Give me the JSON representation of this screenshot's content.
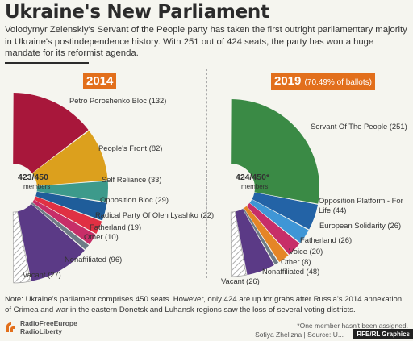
{
  "title": "Ukraine's New Parliament",
  "subtitle": "Volodymyr Zelenskiy's Servant of the People party has taken the first outright parliamentary majority in Ukraine's postindependence history. With 251 out of 424 seats, the party has won a huge mandate for its reformist agenda.",
  "note": "Note: Ukraine's parliament comprises 450 seats. However, only 424 are up for grabs after Russia's 2014 annexation of Crimea and war in the eastern Donetsk and Luhansk regions saw the loss of several voting districts.",
  "footnote": "*One member hasn't been assigned.",
  "byline": "Sofiya Zhelizna | Source: U...",
  "credit": "RFE/RL Graphics",
  "logo_lines": [
    "RadioFreeEurope",
    "RadioLiberty"
  ],
  "chart_data": [
    {
      "type": "pie",
      "year_label": "2014",
      "year_extra": "",
      "center_label": "423/450",
      "center_sub": "members",
      "slices": [
        {
          "name": "Petro Poroshenko Bloc",
          "value": 132,
          "color": "#a8173b"
        },
        {
          "name": "People's Front",
          "value": 82,
          "color": "#dca01d"
        },
        {
          "name": "Self Reliance",
          "value": 33,
          "color": "#3d9a8b"
        },
        {
          "name": "Opposition Bloc",
          "value": 29,
          "color": "#1f5d9a"
        },
        {
          "name": "Radical Party Of Oleh Lyashko",
          "value": 22,
          "color": "#e03043"
        },
        {
          "name": "Fatherland",
          "value": 19,
          "color": "#c72e68"
        },
        {
          "name": "Other",
          "value": 10,
          "color": "#6e7b86"
        },
        {
          "name": "Nonaffiliated",
          "value": 96,
          "color": "#5b3a86"
        },
        {
          "name": "Vacant",
          "value": 27,
          "color": "hatch"
        }
      ]
    },
    {
      "type": "pie",
      "year_label": "2019",
      "year_extra": "(70.49% of ballots)",
      "center_label": "424/450*",
      "center_sub": "members",
      "slices": [
        {
          "name": "Servant Of The People",
          "value": 251,
          "color": "#3a8a45"
        },
        {
          "name": "Opposition Platform - For Life",
          "value": 44,
          "color": "#2363a6"
        },
        {
          "name": "European Solidarity",
          "value": 26,
          "color": "#3f96d6"
        },
        {
          "name": "Fatherland",
          "value": 26,
          "color": "#c72e68"
        },
        {
          "name": "Voice",
          "value": 20,
          "color": "#e58526"
        },
        {
          "name": "Other",
          "value": 8,
          "color": "#6e7b86"
        },
        {
          "name": "Nonaffiliated",
          "value": 48,
          "color": "#5b3a86"
        },
        {
          "name": "Vacant",
          "value": 26,
          "color": "hatch"
        }
      ]
    }
  ]
}
